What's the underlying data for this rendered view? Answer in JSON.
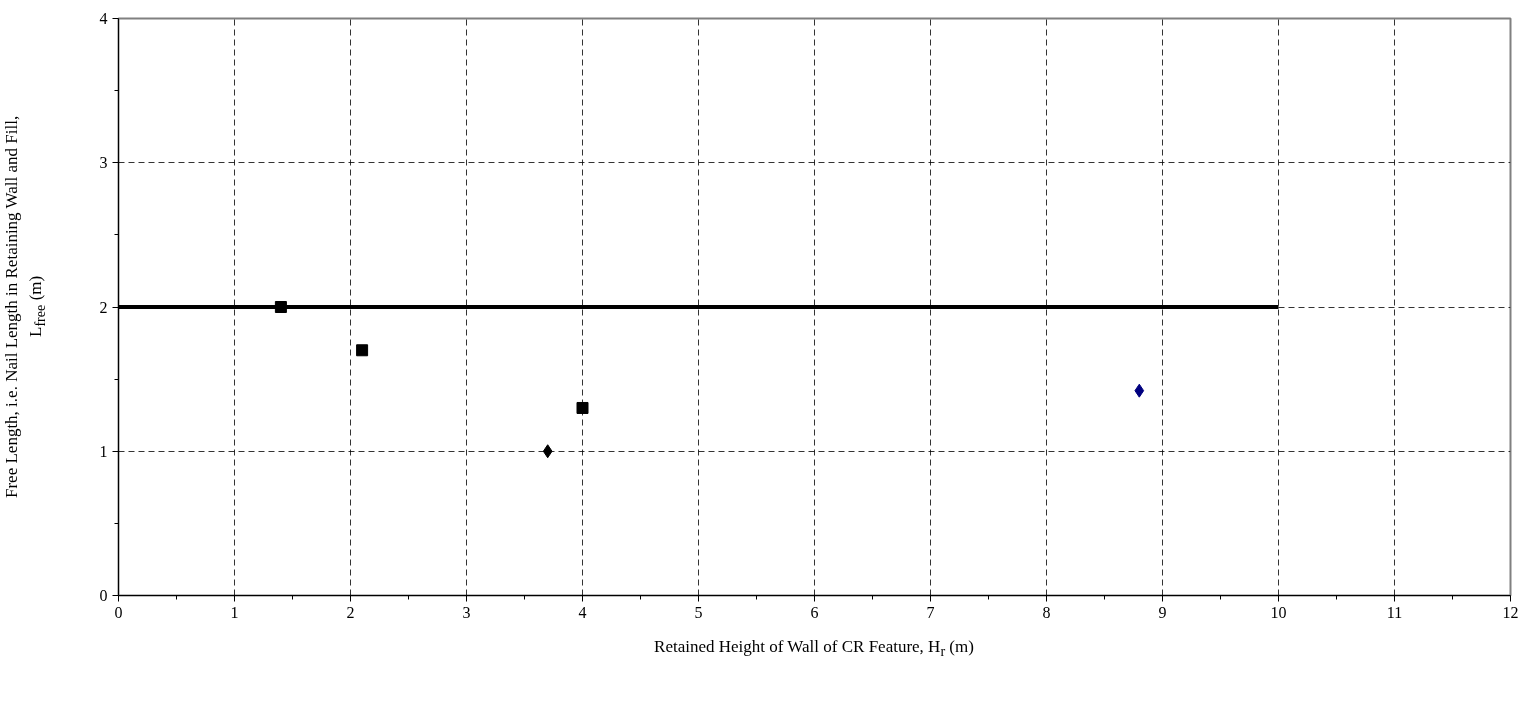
{
  "chart_data": {
    "type": "scatter",
    "xlabel": "Retained Height of Wall of CR Feature, H$_{r}$ (m)",
    "ylabel": "Free Length, i.e. Nail Length in Retaining Wall and Fill, L$_{free}$ (m)",
    "xlim": [
      0,
      12
    ],
    "ylim": [
      0,
      4
    ],
    "xticks": [
      0,
      {
        "value": 0.5,
        "label": null
      },
      1,
      {
        "value": 1.5,
        "label": null
      },
      2,
      {
        "value": 2.5,
        "label": null
      },
      3,
      {
        "value": 3.5,
        "label": null
      },
      4,
      {
        "value": 4.5,
        "label": null
      },
      5,
      {
        "value": 5.5,
        "label": null
      },
      6,
      {
        "value": 6.5,
        "label": null
      },
      7,
      {
        "value": 7.5,
        "label": null
      },
      8,
      {
        "value": 8.5,
        "label": null
      },
      9,
      {
        "value": 9.5,
        "label": null
      },
      10,
      {
        "value": 10.5,
        "label": null
      },
      11,
      {
        "value": 11.5,
        "label": null
      },
      12
    ],
    "yticks": [
      0,
      {
        "value": 0.5,
        "label": null
      },
      1,
      {
        "value": 1.5,
        "label": null
      },
      2,
      {
        "value": 2.5,
        "label": null
      },
      3,
      {
        "value": 3.5,
        "label": null
      },
      4
    ],
    "grid": true,
    "series": [
      {
        "type": "line",
        "x": [
          0,
          10
        ],
        "values": [
          2,
          2
        ],
        "color": "#000000",
        "marker": "none",
        "line_style": "solid"
      },
      {
        "x": [
          1.4,
          2.1,
          4.0
        ],
        "values": [
          2.0,
          1.7,
          1.3
        ],
        "color": "#000000",
        "marker": "square"
      },
      {
        "x": [
          3.7
        ],
        "values": [
          1.0
        ],
        "color": "#000000",
        "marker": "diamond"
      },
      {
        "x": [
          8.8
        ],
        "values": [
          1.42
        ],
        "color": "#000080",
        "marker": "diamond"
      }
    ]
  }
}
